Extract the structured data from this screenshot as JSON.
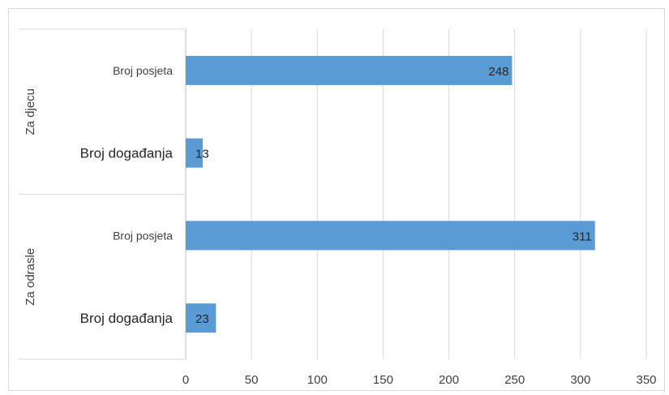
{
  "chart_data": {
    "type": "bar",
    "orientation": "horizontal",
    "title": "",
    "xlabel": "",
    "ylabel": "",
    "xlim": [
      0,
      350
    ],
    "xticks": [
      0,
      50,
      100,
      150,
      200,
      250,
      300,
      350
    ],
    "grid": true,
    "legend": "none",
    "bar_color": "#5b9bd5",
    "groups": [
      {
        "name": "Za djecu",
        "items": [
          {
            "label": "Broj posjeta",
            "value": 248
          },
          {
            "label": "Broj događanja",
            "value": 13
          }
        ]
      },
      {
        "name": "Za odrasle",
        "items": [
          {
            "label": "Broj posjeta",
            "value": 311
          },
          {
            "label": "Broj događanja",
            "value": 23
          }
        ]
      }
    ]
  }
}
